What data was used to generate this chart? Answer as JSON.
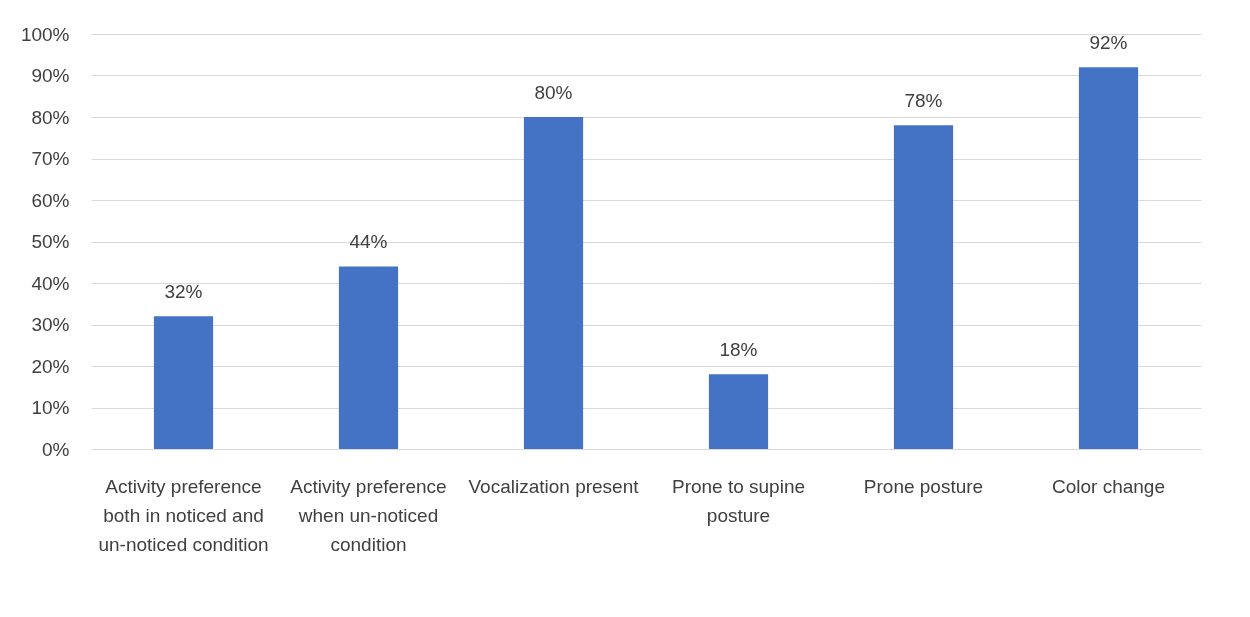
{
  "chart_data": {
    "type": "bar",
    "categories": [
      "Activity preference both in noticed and un-noticed condition",
      "Activity preference when un-noticed condition",
      "Vocalization present",
      "Prone to supine posture",
      "Prone posture",
      "Color change"
    ],
    "values": [
      32,
      44,
      80,
      18,
      78,
      92
    ],
    "value_labels": [
      "32%",
      "44%",
      "80%",
      "18%",
      "78%",
      "92%"
    ],
    "color": "#4472c4",
    "ylim": [
      0,
      100
    ],
    "yticks": [
      {
        "value": 0,
        "label": "0%"
      },
      {
        "value": 10,
        "label": "10%"
      },
      {
        "value": 20,
        "label": "20%"
      },
      {
        "value": 30,
        "label": "30%"
      },
      {
        "value": 40,
        "label": "40%"
      },
      {
        "value": 50,
        "label": "50%"
      },
      {
        "value": 60,
        "label": "60%"
      },
      {
        "value": 70,
        "label": "70%"
      },
      {
        "value": 80,
        "label": "80%"
      },
      {
        "value": 90,
        "label": "90%"
      },
      {
        "value": 100,
        "label": "100%"
      }
    ],
    "grid": "y"
  }
}
